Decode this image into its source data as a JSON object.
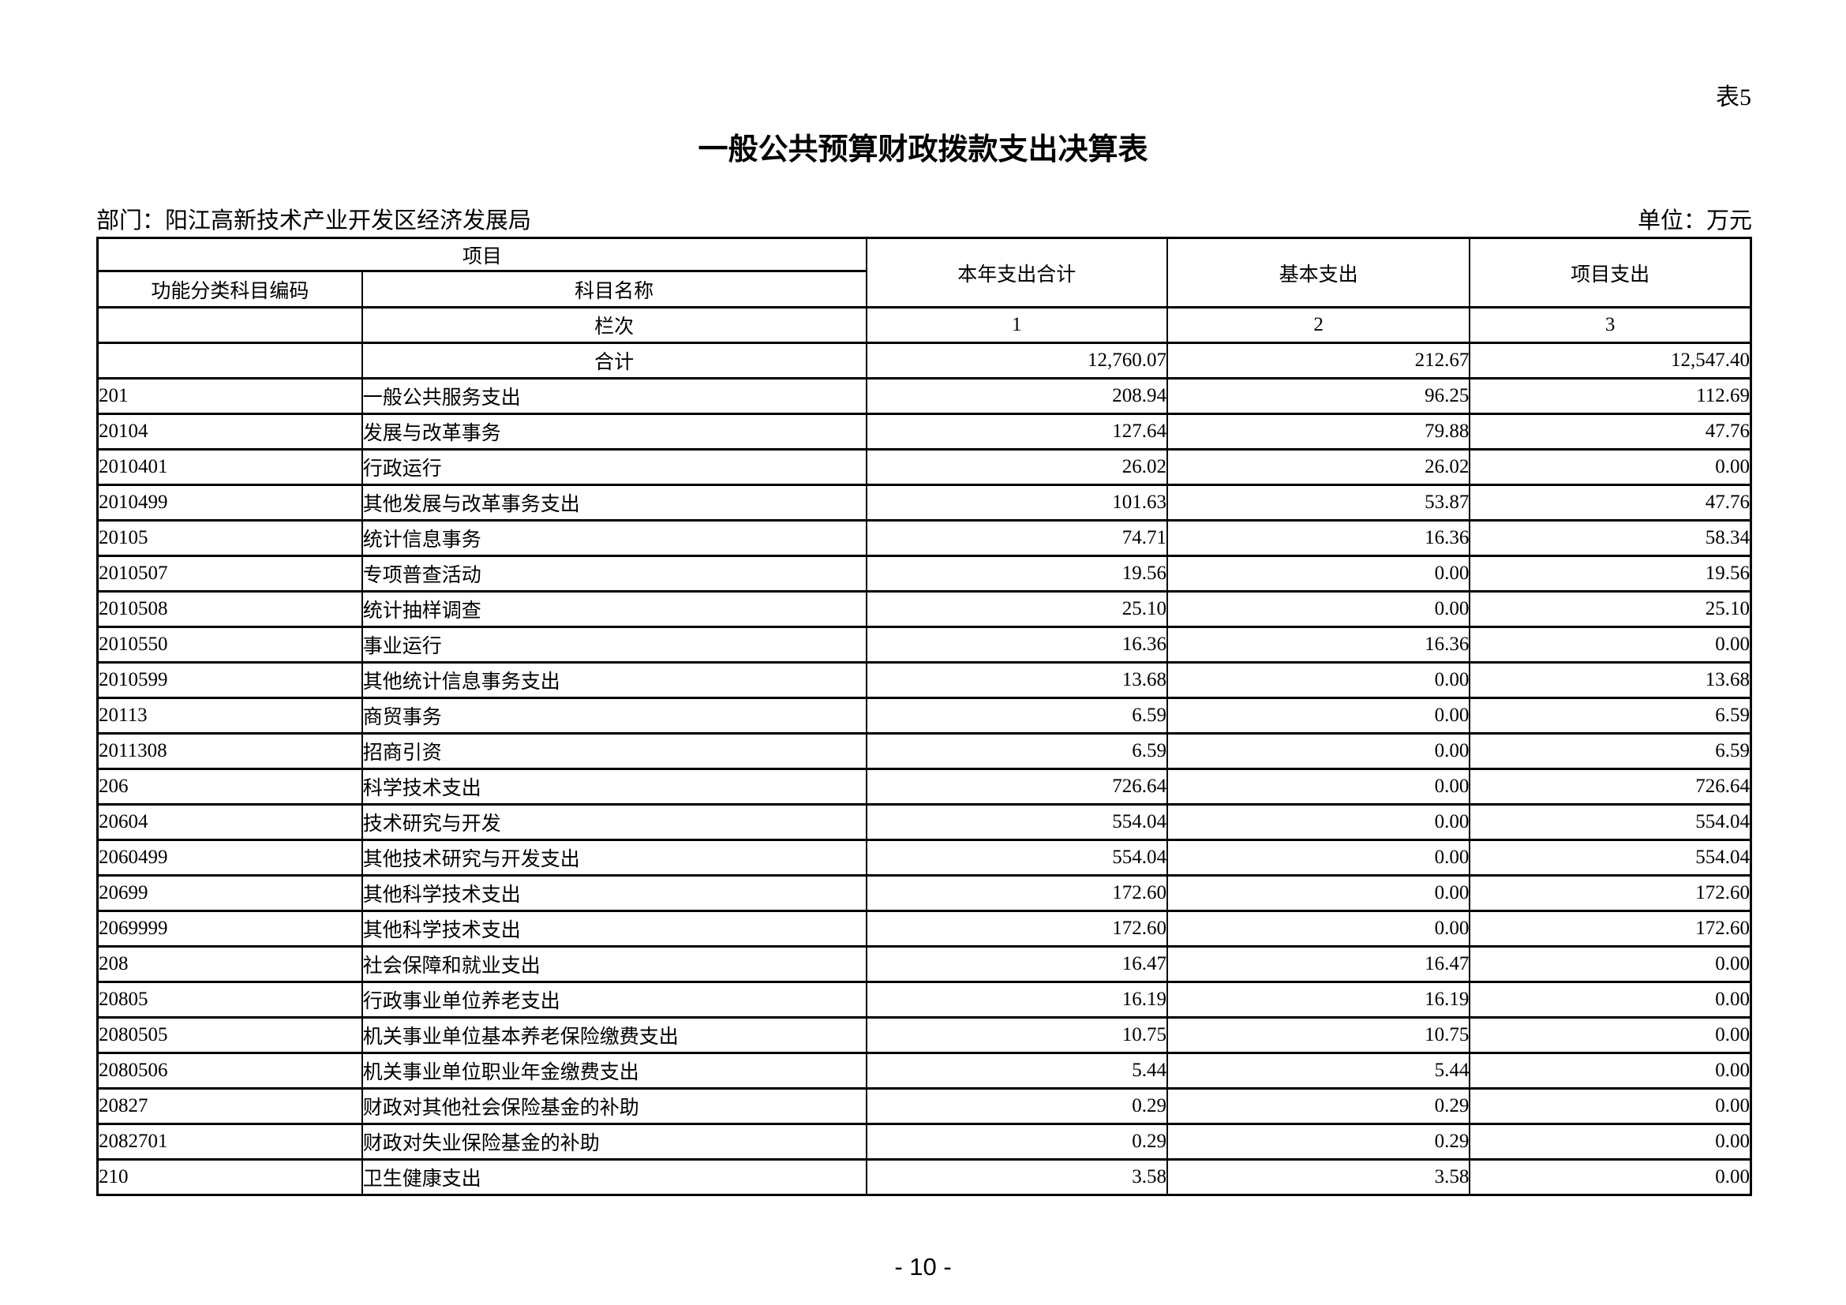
{
  "page": {
    "table_label": "表5",
    "title": "一般公共预算财政拨款支出决算表",
    "department": "部门：阳江高新技术产业开发区经济发展局",
    "unit": "单位：万元",
    "page_number": "- 10 -"
  },
  "table": {
    "header": {
      "project_group": "项目",
      "code": "功能分类科目编码",
      "name": "科目名称",
      "total": "本年支出合计",
      "basic": "基本支出",
      "project": "项目支出",
      "lanci": "栏次",
      "col_numbers": [
        "1",
        "2",
        "3"
      ]
    },
    "total_row": {
      "label": "合计",
      "total": "12,760.07",
      "basic": "212.67",
      "project": "12,547.40"
    },
    "rows": [
      {
        "code": "201",
        "name": "一般公共服务支出",
        "total": "208.94",
        "basic": "96.25",
        "project": "112.69"
      },
      {
        "code": "20104",
        "name": "发展与改革事务",
        "total": "127.64",
        "basic": "79.88",
        "project": "47.76"
      },
      {
        "code": "2010401",
        "name": "行政运行",
        "total": "26.02",
        "basic": "26.02",
        "project": "0.00"
      },
      {
        "code": "2010499",
        "name": "其他发展与改革事务支出",
        "total": "101.63",
        "basic": "53.87",
        "project": "47.76"
      },
      {
        "code": "20105",
        "name": "统计信息事务",
        "total": "74.71",
        "basic": "16.36",
        "project": "58.34"
      },
      {
        "code": "2010507",
        "name": "专项普查活动",
        "total": "19.56",
        "basic": "0.00",
        "project": "19.56"
      },
      {
        "code": "2010508",
        "name": "统计抽样调查",
        "total": "25.10",
        "basic": "0.00",
        "project": "25.10"
      },
      {
        "code": "2010550",
        "name": "事业运行",
        "total": "16.36",
        "basic": "16.36",
        "project": "0.00"
      },
      {
        "code": "2010599",
        "name": "其他统计信息事务支出",
        "total": "13.68",
        "basic": "0.00",
        "project": "13.68"
      },
      {
        "code": "20113",
        "name": "商贸事务",
        "total": "6.59",
        "basic": "0.00",
        "project": "6.59"
      },
      {
        "code": "2011308",
        "name": "招商引资",
        "total": "6.59",
        "basic": "0.00",
        "project": "6.59"
      },
      {
        "code": "206",
        "name": "科学技术支出",
        "total": "726.64",
        "basic": "0.00",
        "project": "726.64"
      },
      {
        "code": "20604",
        "name": "技术研究与开发",
        "total": "554.04",
        "basic": "0.00",
        "project": "554.04"
      },
      {
        "code": "2060499",
        "name": "其他技术研究与开发支出",
        "total": "554.04",
        "basic": "0.00",
        "project": "554.04"
      },
      {
        "code": "20699",
        "name": "其他科学技术支出",
        "total": "172.60",
        "basic": "0.00",
        "project": "172.60"
      },
      {
        "code": "2069999",
        "name": "其他科学技术支出",
        "total": "172.60",
        "basic": "0.00",
        "project": "172.60"
      },
      {
        "code": "208",
        "name": "社会保障和就业支出",
        "total": "16.47",
        "basic": "16.47",
        "project": "0.00"
      },
      {
        "code": "20805",
        "name": "行政事业单位养老支出",
        "total": "16.19",
        "basic": "16.19",
        "project": "0.00"
      },
      {
        "code": "2080505",
        "name": "机关事业单位基本养老保险缴费支出",
        "total": "10.75",
        "basic": "10.75",
        "project": "0.00"
      },
      {
        "code": "2080506",
        "name": "机关事业单位职业年金缴费支出",
        "total": "5.44",
        "basic": "5.44",
        "project": "0.00"
      },
      {
        "code": "20827",
        "name": "财政对其他社会保险基金的补助",
        "total": "0.29",
        "basic": "0.29",
        "project": "0.00"
      },
      {
        "code": "2082701",
        "name": "财政对失业保险基金的补助",
        "total": "0.29",
        "basic": "0.29",
        "project": "0.00"
      },
      {
        "code": "210",
        "name": "卫生健康支出",
        "total": "3.58",
        "basic": "3.58",
        "project": "0.00"
      }
    ]
  }
}
